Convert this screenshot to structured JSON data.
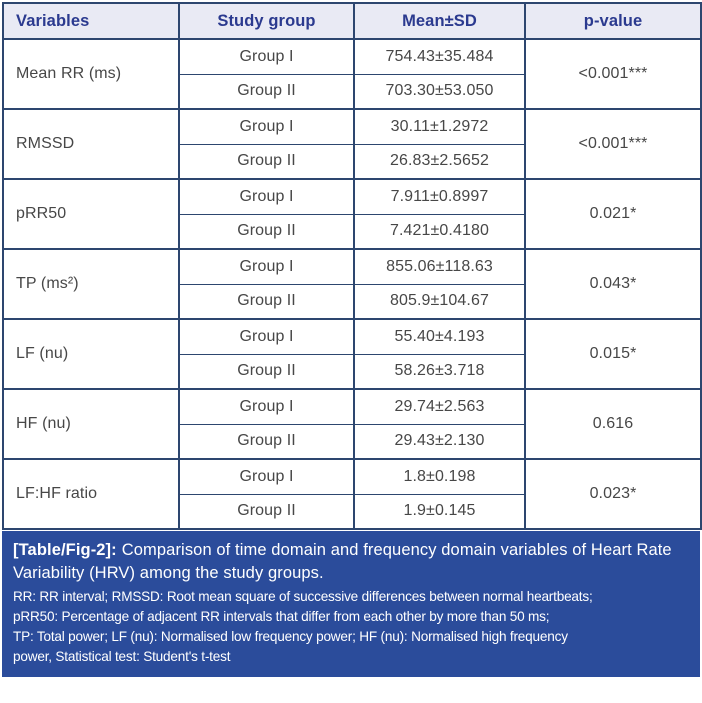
{
  "colors": {
    "border": "#2d466f",
    "header_bg": "#e9eaf4",
    "header_text": "#2b3a8f",
    "body_text": "#474747",
    "footer_bg": "#2b4c9b",
    "footer_text": "#ffffff"
  },
  "table": {
    "headers": [
      "Variables",
      "Study group",
      "Mean±SD",
      "p-value"
    ],
    "rows": [
      {
        "variable": "Mean RR (ms)",
        "groups": [
          {
            "name": "Group I",
            "mean_sd": "754.43±35.484"
          },
          {
            "name": "Group II",
            "mean_sd": "703.30±53.050"
          }
        ],
        "p_value": "<0.001***"
      },
      {
        "variable": "RMSSD",
        "groups": [
          {
            "name": "Group I",
            "mean_sd": "30.11±1.2972"
          },
          {
            "name": "Group II",
            "mean_sd": "26.83±2.5652"
          }
        ],
        "p_value": "<0.001***"
      },
      {
        "variable": "pRR50",
        "groups": [
          {
            "name": "Group I",
            "mean_sd": "7.911±0.8997"
          },
          {
            "name": "Group II",
            "mean_sd": "7.421±0.4180"
          }
        ],
        "p_value": "0.021*"
      },
      {
        "variable": "TP (ms²)",
        "groups": [
          {
            "name": "Group I",
            "mean_sd": "855.06±118.63"
          },
          {
            "name": "Group II",
            "mean_sd": "805.9±104.67"
          }
        ],
        "p_value": "0.043*"
      },
      {
        "variable": "LF (nu)",
        "groups": [
          {
            "name": "Group I",
            "mean_sd": "55.40±4.193"
          },
          {
            "name": "Group II",
            "mean_sd": "58.26±3.718"
          }
        ],
        "p_value": "0.015*"
      },
      {
        "variable": "HF (nu)",
        "groups": [
          {
            "name": "Group I",
            "mean_sd": "29.74±2.563"
          },
          {
            "name": "Group II",
            "mean_sd": "29.43±2.130"
          }
        ],
        "p_value": "0.616"
      },
      {
        "variable": "LF:HF ratio",
        "groups": [
          {
            "name": "Group I",
            "mean_sd": "1.8±0.198"
          },
          {
            "name": "Group II",
            "mean_sd": "1.9±0.145"
          }
        ],
        "p_value": "0.023*"
      }
    ]
  },
  "caption": {
    "label": "[Table/Fig-2]:",
    "text": "Comparison of time domain and frequency domain variables of Heart Rate Variability (HRV) among the study groups."
  },
  "footnote_lines": [
    "RR: RR interval; RMSSD: Root mean square of successive differences between normal heartbeats;",
    "pRR50: Percentage of adjacent RR intervals that differ from each other by more than 50 ms;",
    "TP: Total power; LF (nu): Normalised low frequency power; HF (nu): Normalised high frequency",
    "power, Statistical test: Student's t-test"
  ]
}
